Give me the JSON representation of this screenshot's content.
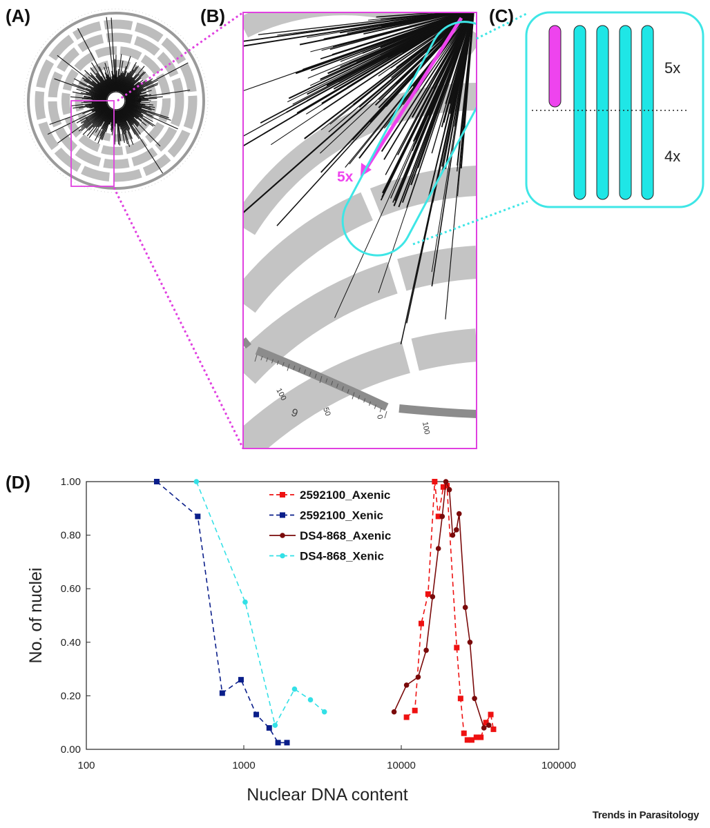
{
  "panels": {
    "a": "(A)",
    "b": "(B)",
    "c": "(C)",
    "d": "(D)"
  },
  "circos": {
    "arrow_label": "5x",
    "scale_labels": [
      "100",
      "50",
      "0",
      "100"
    ],
    "chromosome_label": "6"
  },
  "ploidy": {
    "upper_label": "5x",
    "lower_label": "4x"
  },
  "colors": {
    "magenta": "#ee44ee",
    "cyan": "#1fe6e6",
    "gray": "#bdbdbd"
  },
  "journal": "Trends in Parasitology",
  "chart_data": {
    "type": "line",
    "xscale": "log",
    "xlim": [
      100,
      100000
    ],
    "ylim": [
      0,
      1.0
    ],
    "xlabel": "Nuclear DNA content",
    "ylabel": "No. of nuclei",
    "xticks": [
      "100",
      "1000",
      "10000",
      "100000"
    ],
    "yticks": [
      "0.00",
      "0.20",
      "0.40",
      "0.60",
      "0.80",
      "1.00"
    ],
    "legend_position": "top-center",
    "series": [
      {
        "name": "2592100_Axenic",
        "color": "#ee1111",
        "dash": true,
        "marker": "square",
        "points": [
          [
            10800,
            0.12
          ],
          [
            12200,
            0.145
          ],
          [
            13400,
            0.47
          ],
          [
            14800,
            0.58
          ],
          [
            16300,
            1.0
          ],
          [
            17200,
            0.87
          ],
          [
            18500,
            0.98
          ],
          [
            19500,
            0.985
          ],
          [
            22500,
            0.38
          ],
          [
            23800,
            0.19
          ],
          [
            25000,
            0.06
          ],
          [
            26300,
            0.035
          ],
          [
            28000,
            0.035
          ],
          [
            30000,
            0.045
          ],
          [
            32000,
            0.045
          ],
          [
            34500,
            0.1
          ],
          [
            37000,
            0.13
          ],
          [
            38500,
            0.075
          ]
        ]
      },
      {
        "name": "2592100_Xenic",
        "color": "#0a1e8a",
        "dash": true,
        "marker": "square",
        "points": [
          [
            280,
            1.0
          ],
          [
            510,
            0.87
          ],
          [
            730,
            0.21
          ],
          [
            960,
            0.26
          ],
          [
            1200,
            0.13
          ],
          [
            1450,
            0.08
          ],
          [
            1650,
            0.025
          ],
          [
            1880,
            0.025
          ]
        ]
      },
      {
        "name": "DS4-868_Axenic",
        "color": "#7a0a0a",
        "dash": false,
        "marker": "circle",
        "points": [
          [
            9000,
            0.14
          ],
          [
            10800,
            0.24
          ],
          [
            12800,
            0.27
          ],
          [
            14400,
            0.37
          ],
          [
            15800,
            0.57
          ],
          [
            17200,
            0.75
          ],
          [
            18200,
            0.87
          ],
          [
            19200,
            1.0
          ],
          [
            20200,
            0.97
          ],
          [
            21200,
            0.8
          ],
          [
            22400,
            0.82
          ],
          [
            23300,
            0.88
          ],
          [
            25500,
            0.53
          ],
          [
            27300,
            0.4
          ],
          [
            29200,
            0.19
          ],
          [
            33500,
            0.08
          ],
          [
            36000,
            0.09
          ]
        ]
      },
      {
        "name": "DS4-868_Xenic",
        "color": "#33e0e6",
        "dash": true,
        "marker": "circle",
        "points": [
          [
            500,
            1.0
          ],
          [
            1020,
            0.55
          ],
          [
            1580,
            0.09
          ],
          [
            2100,
            0.225
          ],
          [
            2650,
            0.185
          ],
          [
            3250,
            0.14
          ]
        ]
      }
    ]
  }
}
